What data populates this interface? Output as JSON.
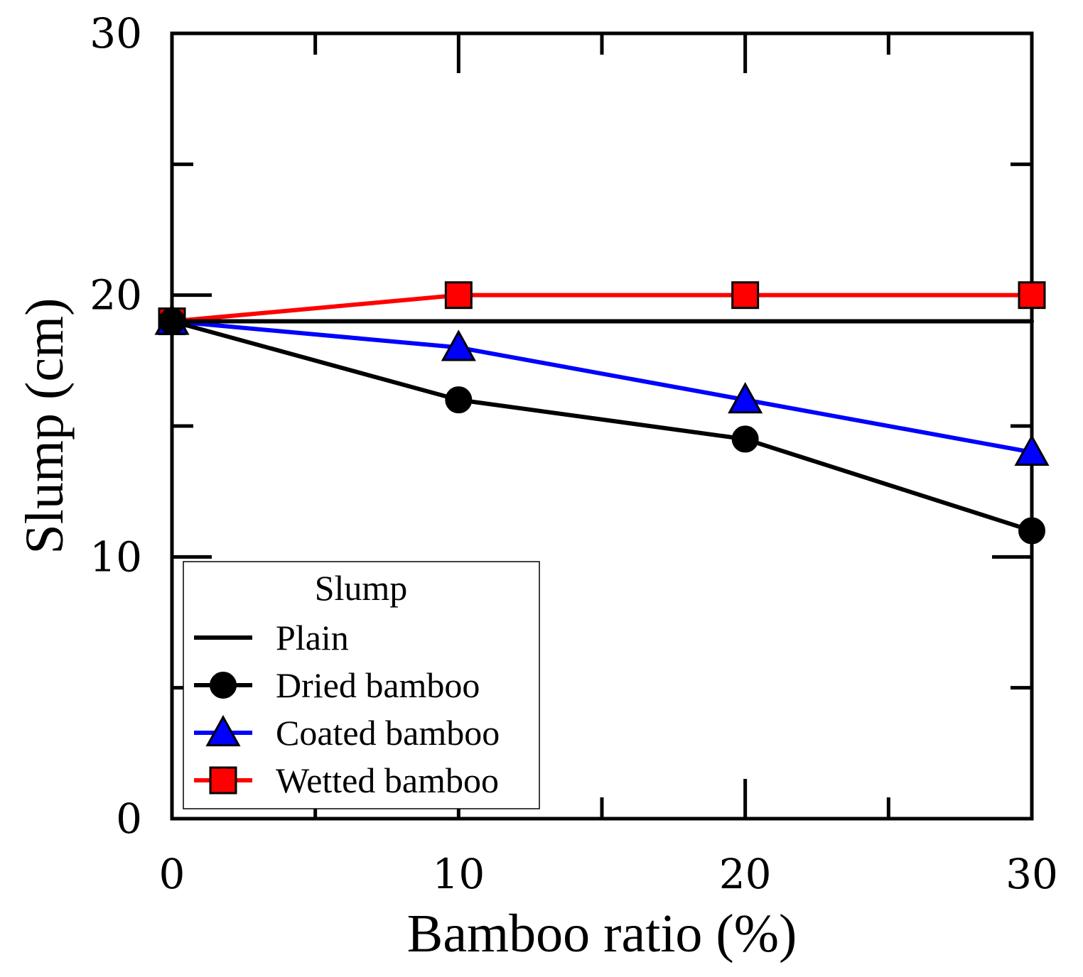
{
  "chart_data": {
    "type": "line",
    "title": "",
    "xlabel": "Bamboo ratio (%)",
    "ylabel": "Slump (cm)",
    "xlim": [
      0,
      30
    ],
    "ylim": [
      0,
      30
    ],
    "x_ticks": [
      "0",
      "10",
      "20",
      "30"
    ],
    "y_ticks": [
      "0",
      "10",
      "20",
      "30"
    ],
    "x": [
      0,
      10,
      20,
      30
    ],
    "legend": {
      "title": "Slump",
      "placement": "bottom-left"
    },
    "series": [
      {
        "name": "Plain",
        "color": "#000000",
        "marker": "none",
        "values": [
          19,
          19,
          19,
          19
        ]
      },
      {
        "name": "Dried bamboo",
        "color": "#000000",
        "marker": "circle",
        "values": [
          19,
          16,
          14.5,
          11
        ]
      },
      {
        "name": "Coated bamboo",
        "color": "#0000ff",
        "marker": "triangle",
        "values": [
          19,
          18,
          16,
          14
        ]
      },
      {
        "name": "Wetted bamboo",
        "color": "#ff0000",
        "marker": "square",
        "values": [
          19,
          20,
          20,
          20
        ]
      }
    ]
  }
}
